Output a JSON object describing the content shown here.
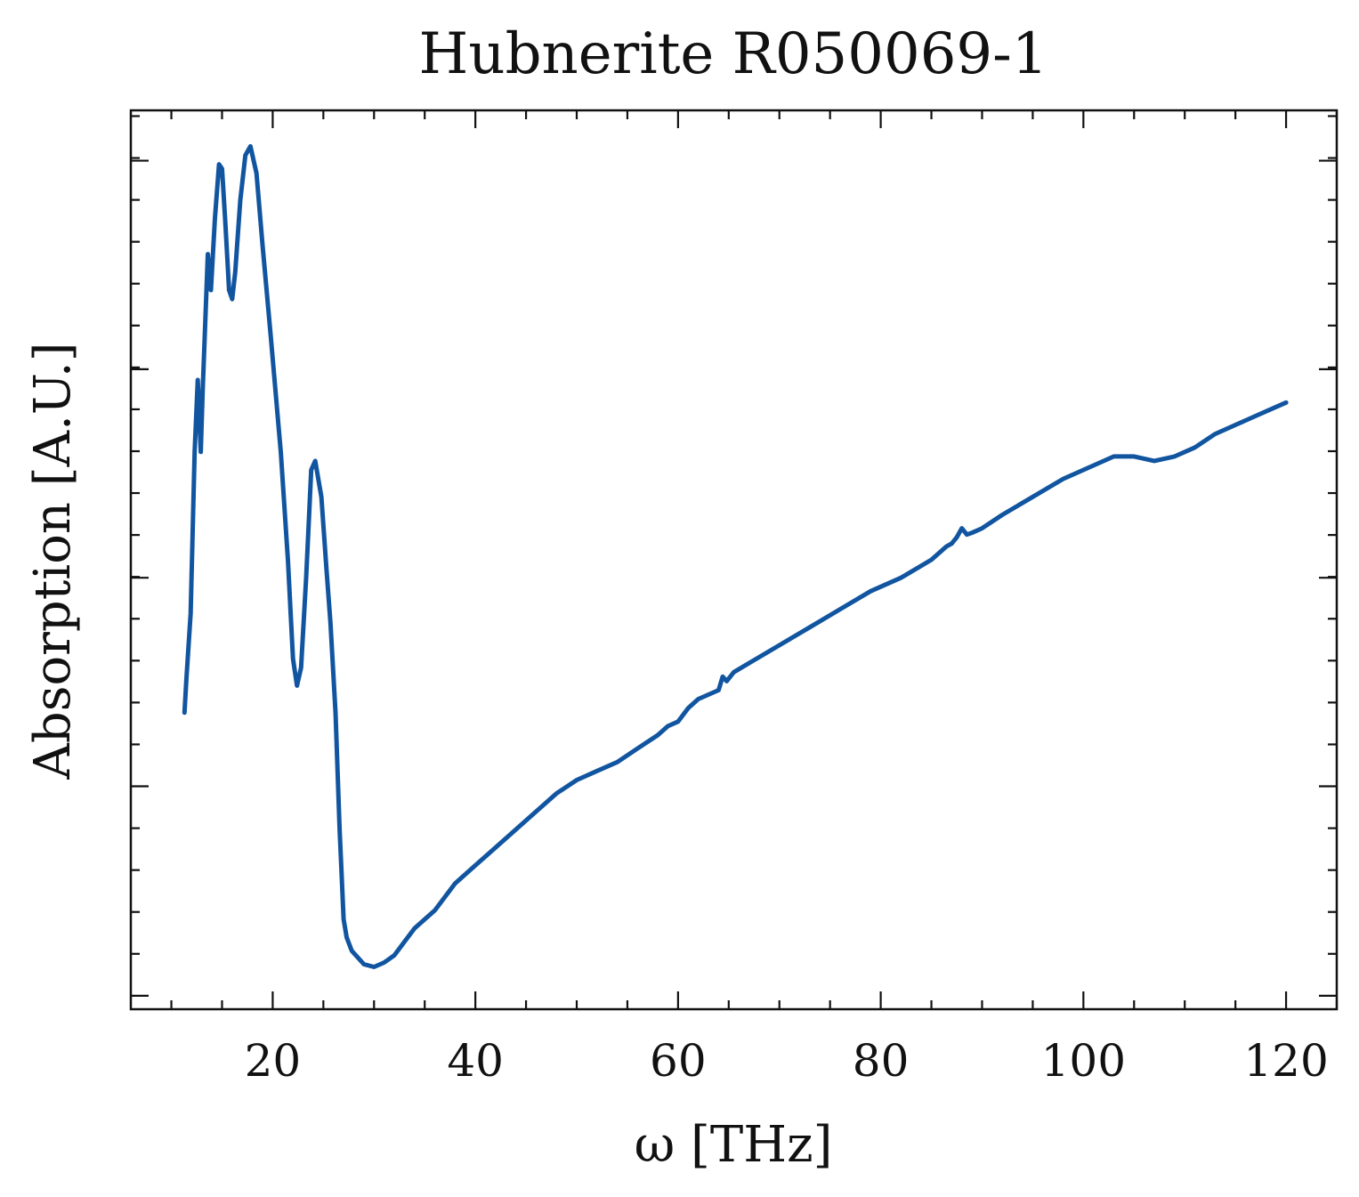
{
  "chart_data": {
    "type": "line",
    "title": "Hubnerite R050069-1",
    "xlabel": "ω [THz]",
    "ylabel": "Absorption [A.U.]",
    "xlim": [
      6,
      125
    ],
    "ylim": [
      0.0,
      1.0
    ],
    "x_ticks": [
      20,
      40,
      60,
      80,
      100,
      120
    ],
    "x_tick_labels": [
      "20",
      "40",
      "60",
      "80",
      "100",
      "120"
    ],
    "x_minor_step": 5,
    "y_major_ticks": [
      0.015,
      0.248,
      0.48,
      0.712,
      0.944
    ],
    "y_minor_count_between": 4,
    "y_tick_labels_shown": false,
    "grid": false,
    "legend": "none",
    "colors": {
      "line": "#1155a0",
      "axes": "#111111"
    },
    "series": [
      {
        "x": [
          11.3,
          11.5,
          11.9,
          12.3,
          12.6,
          12.9,
          13.1,
          13.3,
          13.6,
          13.9,
          14.3,
          14.7,
          15.0,
          15.3,
          15.7,
          16.0,
          16.3,
          16.8,
          17.3,
          17.8,
          18.4,
          19.0,
          19.8,
          20.8,
          21.5,
          22.0,
          22.4,
          22.8,
          23.3,
          23.8,
          24.2,
          24.8,
          25.3,
          25.7,
          26.2,
          26.6,
          27.0,
          27.3,
          27.8,
          29.0,
          30.0,
          31.0,
          32.0,
          33.0,
          34.0,
          35.0,
          36.0,
          37.0,
          38.0,
          40.0,
          42.0,
          44.0,
          46.0,
          48.0,
          50.0,
          52.0,
          54.0,
          56.0,
          58.0,
          59.0,
          60.0,
          61.0,
          62.0,
          63.0,
          64.0,
          64.4,
          64.8,
          65.5,
          67.0,
          70.0,
          73.0,
          76.0,
          79.0,
          82.0,
          85.0,
          86.5,
          87.0,
          87.5,
          88.0,
          88.5,
          89.0,
          90.0,
          92.0,
          95.0,
          98.0,
          101.0,
          103.0,
          105.0,
          107.0,
          109.0,
          111.0,
          113.0,
          115.0,
          117.0,
          119.0,
          120.0
        ],
        "y": [
          0.33,
          0.37,
          0.44,
          0.62,
          0.7,
          0.62,
          0.69,
          0.75,
          0.84,
          0.8,
          0.88,
          0.94,
          0.935,
          0.88,
          0.8,
          0.79,
          0.82,
          0.9,
          0.95,
          0.96,
          0.93,
          0.85,
          0.75,
          0.62,
          0.5,
          0.39,
          0.36,
          0.38,
          0.48,
          0.6,
          0.61,
          0.57,
          0.49,
          0.43,
          0.33,
          0.2,
          0.1,
          0.08,
          0.065,
          0.05,
          0.047,
          0.052,
          0.06,
          0.075,
          0.09,
          0.1,
          0.11,
          0.125,
          0.14,
          0.16,
          0.18,
          0.2,
          0.22,
          0.24,
          0.255,
          0.265,
          0.275,
          0.29,
          0.305,
          0.315,
          0.32,
          0.335,
          0.345,
          0.35,
          0.355,
          0.37,
          0.365,
          0.375,
          0.385,
          0.405,
          0.425,
          0.445,
          0.465,
          0.48,
          0.5,
          0.515,
          0.518,
          0.525,
          0.535,
          0.528,
          0.53,
          0.535,
          0.55,
          0.57,
          0.59,
          0.605,
          0.615,
          0.615,
          0.61,
          0.615,
          0.625,
          0.64,
          0.65,
          0.66,
          0.67,
          0.675
        ]
      }
    ]
  }
}
